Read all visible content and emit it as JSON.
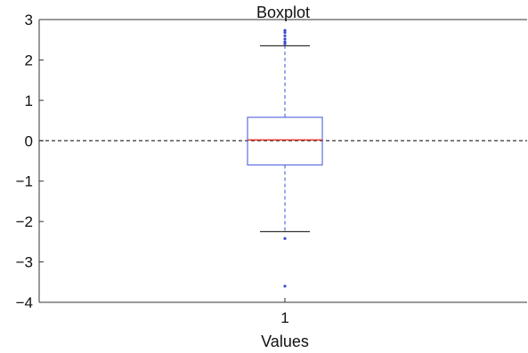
{
  "chart_data": {
    "type": "box",
    "title": "Boxplot",
    "xlabel": "Values",
    "ylabel": "",
    "categories": [
      "1"
    ],
    "ylim": [
      -4,
      3
    ],
    "yticks": [
      3,
      2,
      1,
      0,
      -1,
      -2,
      -3,
      -4
    ],
    "ytick_labels": [
      "3",
      "2",
      "1",
      "0",
      "−1",
      "−2",
      "−3",
      "−4"
    ],
    "grid": false,
    "reference_line": {
      "y": 0,
      "style": "dashed"
    },
    "box": {
      "q1": -0.6,
      "median": 0.02,
      "q3": 0.58,
      "whisker_low": -2.25,
      "whisker_high": 2.35
    },
    "outliers": [
      2.4,
      2.45,
      2.52,
      2.6,
      2.68,
      2.73,
      -2.42,
      -3.6
    ],
    "colors": {
      "box": "#5b6ee1",
      "median": "#e0392b",
      "whisker": "#5b6ee1",
      "cap": "#333333",
      "outlier": "#3b4bd0",
      "axis": "#333333",
      "reference": "#333333"
    }
  }
}
